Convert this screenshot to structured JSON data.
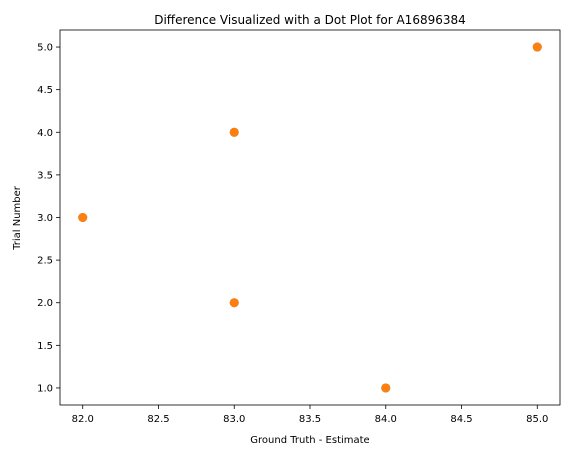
{
  "chart_data": {
    "type": "scatter",
    "title": "Difference Visualized with a Dot Plot for A16896384",
    "xlabel": "Ground Truth - Estimate",
    "ylabel": "Trial Number",
    "xlim": [
      81.85,
      85.15
    ],
    "ylim": [
      0.8,
      5.2
    ],
    "x_ticks": [
      "82.0",
      "82.5",
      "83.0",
      "83.5",
      "84.0",
      "84.5",
      "85.0"
    ],
    "y_ticks": [
      "1.0",
      "1.5",
      "2.0",
      "2.5",
      "3.0",
      "3.5",
      "4.0",
      "4.5",
      "5.0"
    ],
    "grid": false,
    "series": [
      {
        "color": "#1f77b4",
        "points": [
          {
            "x": 84,
            "y": 1
          },
          {
            "x": 83,
            "y": 2
          },
          {
            "x": 82,
            "y": 3
          },
          {
            "x": 83,
            "y": 4
          },
          {
            "x": 85,
            "y": 5
          }
        ]
      },
      {
        "color": "#ff7f0e",
        "points": [
          {
            "x": 84,
            "y": 1
          },
          {
            "x": 83,
            "y": 2
          },
          {
            "x": 82,
            "y": 3
          },
          {
            "x": 83,
            "y": 4
          },
          {
            "x": 85,
            "y": 5
          }
        ]
      }
    ]
  }
}
